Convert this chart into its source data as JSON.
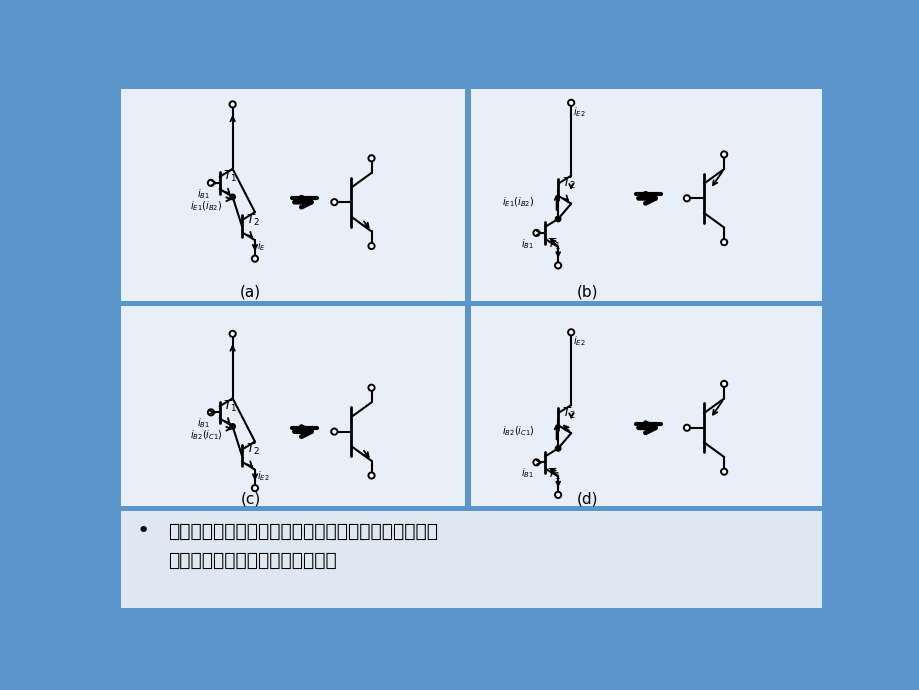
{
  "bg_color": "#5a96cc",
  "panel_bg": "#e8eff8",
  "text_panel_bg": "#dde8f2",
  "text_line1": "从上图可以看出，不同类型晶体管组成的复合管，等效",
  "text_line2": "成与第一个管子相同类型的管子。",
  "bullet": "•",
  "label_a": "(a)",
  "label_b": "(b)",
  "label_c": "(c)",
  "label_d": "(d)"
}
